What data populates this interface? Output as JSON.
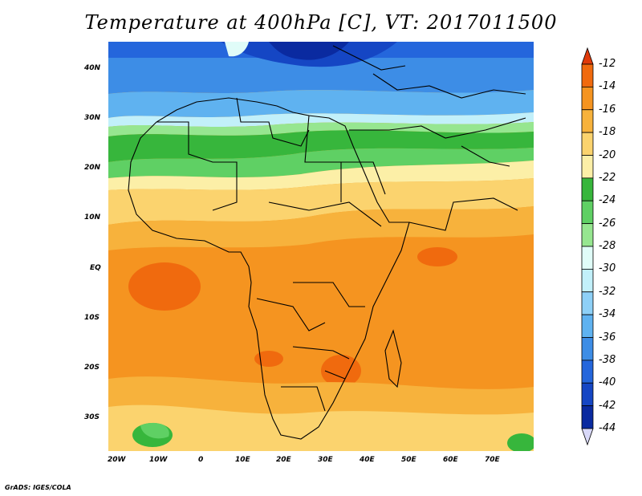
{
  "title": "Temperature at 400hPa [C], VT: 2017011500",
  "lat_labels": [
    "40N",
    "30N",
    "20N",
    "10N",
    "EQ",
    "10S",
    "20S",
    "30S"
  ],
  "lon_labels": [
    "20W",
    "10W",
    "0",
    "10E",
    "20E",
    "30E",
    "40E",
    "50E",
    "60E",
    "70E"
  ],
  "colorbar": {
    "levels": [
      "-12",
      "-14",
      "-16",
      "-18",
      "-20",
      "-22",
      "-24",
      "-26",
      "-28",
      "-30",
      "-32",
      "-34",
      "-36",
      "-38",
      "-40",
      "-42",
      "-44"
    ],
    "colors": [
      "#e03a0a",
      "#f06a0e",
      "#f59420",
      "#f7b23c",
      "#fbd36e",
      "#fcefa7",
      "#37b63c",
      "#5fd064",
      "#96e690",
      "#e0fcf8",
      "#c2f0fa",
      "#8ed0f7",
      "#5fb2f0",
      "#3d8de6",
      "#2466dc",
      "#1546c4",
      "#0a2aa0",
      "#0a1a6e"
    ]
  },
  "credit": "GrADS: IGES/COLA"
}
